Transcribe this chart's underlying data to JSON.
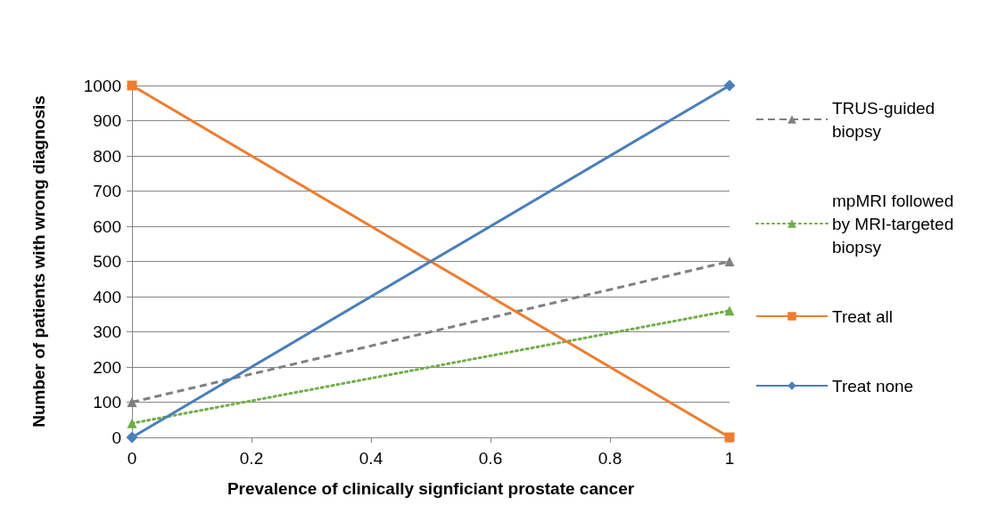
{
  "chart_data": {
    "type": "line",
    "xlabel": "Prevalence of clinically signficiant prostate cancer",
    "ylabel": "Number of patients with wrong diagnosis",
    "xlim": [
      0,
      1
    ],
    "xticks": [
      0,
      0.2,
      0.4,
      0.6,
      0.8,
      1
    ],
    "ylim": [
      0,
      1000
    ],
    "yticks": [
      0,
      100,
      200,
      300,
      400,
      500,
      600,
      700,
      800,
      900,
      1000
    ],
    "grid": "y",
    "legend": "right",
    "x": [
      0,
      1
    ],
    "series": [
      {
        "name": "TRUS-guided biopsy",
        "color": "#808080",
        "values": [
          100,
          500
        ],
        "marker": "triangle",
        "line_style": "dashed"
      },
      {
        "name": "mpMRI followed by MRI-targeted biopsy",
        "color": "#70ad47",
        "values": [
          40,
          360
        ],
        "marker": "triangle",
        "line_style": "dotted"
      },
      {
        "name": "Treat all",
        "color": "#ed7d31",
        "values": [
          1000,
          0
        ],
        "marker": "square",
        "line_style": "solid"
      },
      {
        "name": "Treat none",
        "color": "#4a7ebb",
        "values": [
          0,
          1000
        ],
        "marker": "diamond",
        "line_style": "solid"
      }
    ]
  }
}
